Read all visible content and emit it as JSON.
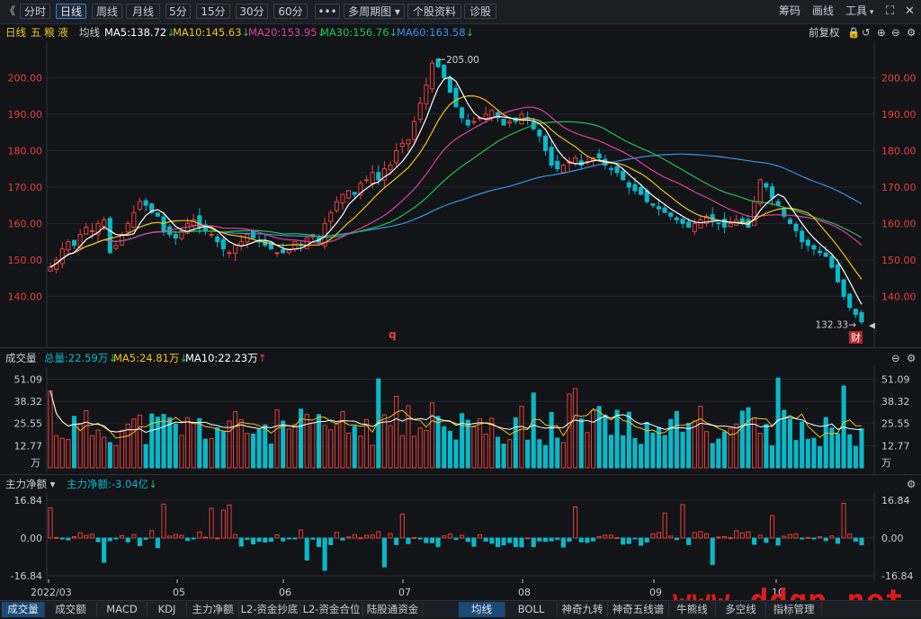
{
  "toolbar": {
    "back": "《",
    "periods": [
      "分时",
      "日线",
      "周线",
      "月线",
      "5分",
      "15分",
      "30分",
      "60分"
    ],
    "active_period": "日线",
    "more": "•••",
    "multi": "多周期图",
    "profile": "个股资料",
    "diagnose": "诊股",
    "right": [
      "筹码",
      "画线",
      "工具"
    ]
  },
  "legend": {
    "period": "日线",
    "stock": "五 粮 液",
    "ma_label": "均线",
    "ma": [
      {
        "label": "MA5:138.72",
        "color": "#ffffff",
        "arrow": "down"
      },
      {
        "label": "MA10:145.63",
        "color": "#f2c31f",
        "arrow": "down"
      },
      {
        "label": "MA20:153.95",
        "color": "#e040a0",
        "arrow": "down"
      },
      {
        "label": "MA30:156.76",
        "color": "#23c24f",
        "arrow": "down"
      },
      {
        "label": "MA60:163.58",
        "color": "#3a93e8",
        "arrow": "down"
      }
    ],
    "adjust": "前复权"
  },
  "price_axis": {
    "ticks": [
      "200.00",
      "190.00",
      "180.00",
      "170.00",
      "160.00",
      "150.00",
      "140.00"
    ],
    "values": [
      200,
      190,
      180,
      170,
      160,
      150,
      140
    ],
    "min": 128,
    "max": 208
  },
  "price_marks": {
    "high_label": "205.00",
    "low_label": "132.33",
    "q_label": "q",
    "cai_label": "财"
  },
  "colors": {
    "up": "#e8413b",
    "down": "#0bb8c8",
    "bg": "#121418",
    "grid": "#23272e",
    "ma5": "#ffffff",
    "ma10": "#f2c31f",
    "ma20": "#e040a0",
    "ma30": "#23c24f",
    "ma60": "#3a93e8"
  },
  "volume": {
    "title": "成交量",
    "legend": [
      {
        "label": "总量:22.59万",
        "color": "#0bb8c8",
        "arrow": "down"
      },
      {
        "label": "MA5:24.81万",
        "color": "#f2c31f",
        "arrow": "down"
      },
      {
        "label": "MA10:22.23万",
        "color": "#ffffff",
        "arrow": "up"
      }
    ],
    "ticks": [
      "51.09",
      "38.32",
      "25.55",
      "12.77"
    ],
    "unit": "万"
  },
  "flow": {
    "title": "主力净额",
    "legend": "主力净额:-3.04亿",
    "ticks": [
      "16.84",
      "0.00",
      "-16.84"
    ]
  },
  "x_labels": [
    "2022/03",
    "05",
    "06",
    "07",
    "08",
    "09",
    "10"
  ],
  "bottom_tabs_left": [
    "成交量",
    "成交额",
    "MACD",
    "KDJ",
    "主力净额",
    "L2-资金抄底",
    "L2-资金合位",
    "陆股通资金"
  ],
  "bottom_tabs_left_active": "成交量",
  "bottom_tabs_right": [
    "均线",
    "BOLL",
    "神奇九转",
    "神奇五线谱",
    "牛熊线",
    "多空线",
    "指标管理"
  ],
  "bottom_tabs_right_active": "均线",
  "watermark": "www.ddgp.net",
  "chart_data": {
    "type": "candlestick",
    "title": "",
    "xlabel": "",
    "ylabel": "",
    "ylim": [
      128,
      208
    ],
    "x_labels": [
      "2022/03",
      "05",
      "06",
      "07",
      "08",
      "09",
      "10"
    ],
    "closes": [
      148,
      150,
      153,
      155,
      154,
      157,
      159,
      158,
      160,
      161,
      152,
      154,
      157,
      160,
      163,
      166,
      165,
      163,
      162,
      158,
      157,
      156,
      158,
      160,
      161,
      159,
      158,
      157,
      155,
      153,
      152,
      154,
      155,
      157,
      156,
      155,
      154,
      153,
      152,
      152,
      153,
      155,
      154,
      156,
      157,
      155,
      160,
      163,
      166,
      168,
      169,
      168,
      171,
      172,
      174,
      172,
      175,
      176,
      180,
      182,
      183,
      188,
      193,
      198,
      204,
      203,
      200,
      196,
      192,
      189,
      187,
      188,
      189,
      190,
      191,
      189,
      187,
      188,
      188,
      190,
      189,
      186,
      184,
      180,
      176,
      175,
      176,
      177,
      178,
      176,
      177,
      178,
      178,
      176,
      175,
      174,
      172,
      170,
      169,
      168,
      166,
      165,
      164,
      163,
      162,
      161,
      160,
      159,
      160,
      161,
      162,
      161,
      160,
      159,
      160,
      161,
      160,
      159,
      166,
      172,
      170,
      167,
      165,
      162,
      160,
      158,
      155,
      154,
      153,
      152,
      151,
      148,
      144,
      140,
      137,
      135,
      133
    ],
    "volume_ma": {
      "ma5": 24.81,
      "ma10": 22.23,
      "total": 22.59,
      "ticks": [
        51.09,
        38.32,
        25.55,
        12.77
      ]
    },
    "flow_range": [
      -16.84,
      16.84
    ],
    "series": [
      {
        "name": "MA5",
        "last": 138.72
      },
      {
        "name": "MA10",
        "last": 145.63
      },
      {
        "name": "MA20",
        "last": 153.95
      },
      {
        "name": "MA30",
        "last": 156.76
      },
      {
        "name": "MA60",
        "last": 163.58
      }
    ]
  }
}
